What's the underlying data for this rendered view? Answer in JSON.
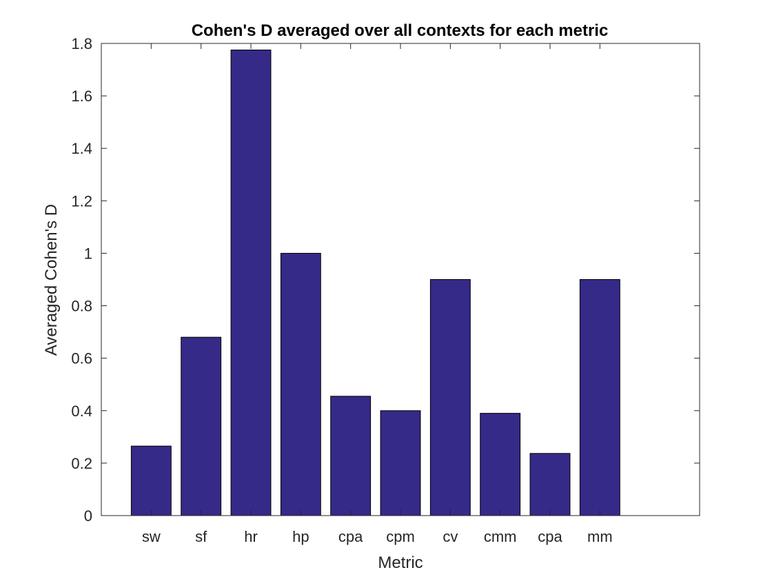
{
  "chart_data": {
    "type": "bar",
    "title": "Cohen's D averaged over all contexts for each metric",
    "xlabel": "Metric",
    "ylabel": "Averaged Cohen's D",
    "categories": [
      "sw",
      "sf",
      "hr",
      "hp",
      "cpa",
      "cpm",
      "cv",
      "cmm",
      "cpa",
      "mm"
    ],
    "values": [
      0.265,
      0.68,
      1.775,
      1.0,
      0.455,
      0.4,
      0.9,
      0.39,
      0.237,
      0.9
    ],
    "ylim": [
      0,
      1.8
    ],
    "xlim": [
      0,
      12
    ],
    "yticks": [
      0,
      0.2,
      0.4,
      0.6,
      0.8,
      1,
      1.2,
      1.4,
      1.6,
      1.8
    ],
    "ytick_labels": [
      "0",
      "0.2",
      "0.4",
      "0.6",
      "0.8",
      "1",
      "1.2",
      "1.4",
      "1.6",
      "1.8"
    ],
    "grid": false,
    "bar_color": "#352a87"
  }
}
